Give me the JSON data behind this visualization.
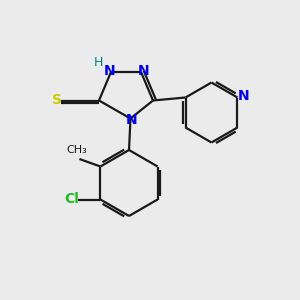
{
  "background_color": "#ebebeb",
  "bond_color": "#1a1a1a",
  "N_color": "#0000ee",
  "S_color": "#cccc00",
  "Cl_color": "#22bb22",
  "H_color": "#008080",
  "font_size": 10,
  "figsize": [
    3.0,
    3.0
  ],
  "dpi": 100,
  "lw": 1.6,
  "xlim": [
    0,
    10
  ],
  "ylim": [
    0,
    10
  ]
}
